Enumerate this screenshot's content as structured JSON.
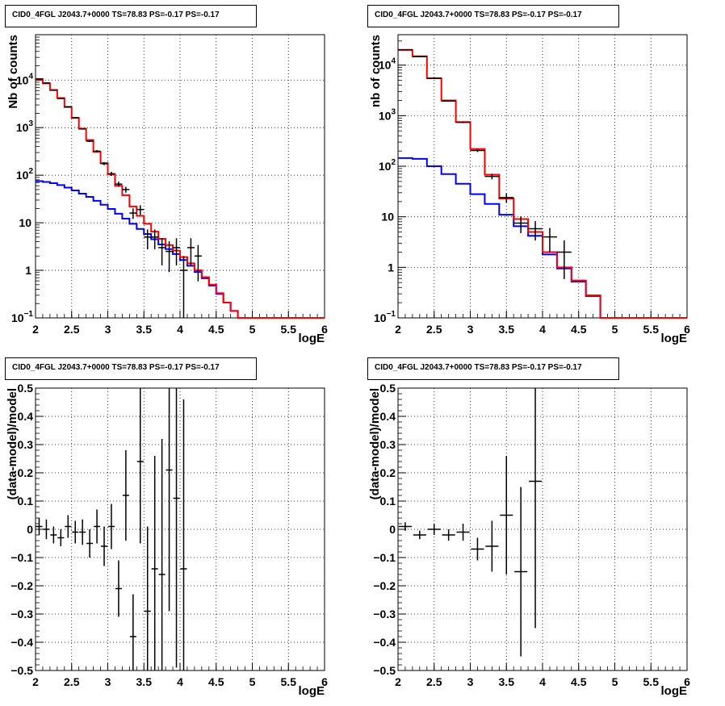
{
  "chart_data": [
    {
      "type": "line",
      "title": "CID0_4FGL J2043.7+0000 TS=78.83 PS=-0.17 PS=-0.17",
      "xlabel": "logE",
      "ylabel": "Nb of counts",
      "xlim": [
        2,
        6
      ],
      "ylim": [
        0.1,
        90000
      ],
      "yscale": "log",
      "grid": true,
      "x_ticks": [
        2,
        2.5,
        3,
        3.5,
        4,
        4.5,
        5,
        5.5,
        6
      ],
      "x_tick_labels": [
        "2",
        "2.5",
        "3",
        "3.5",
        "4",
        "4.5",
        "5",
        "5.5",
        "6"
      ],
      "y_tick_labels": [
        "10^-1",
        "1",
        "10",
        "10^2",
        "10^3",
        "10^4"
      ],
      "colors": {
        "total_model": "#ff0000",
        "background_model": "#0000ff",
        "data": "#000000"
      },
      "bin_edges": [
        2,
        2.1,
        2.2,
        2.3,
        2.4,
        2.5,
        2.6,
        2.7,
        2.8,
        2.9,
        3,
        3.1,
        3.2,
        3.3,
        3.4,
        3.5,
        3.6,
        3.7,
        3.8,
        3.9,
        4,
        4.1,
        4.2,
        4.3,
        4.4,
        4.5,
        4.6,
        4.7,
        4.8,
        4.9,
        5,
        5.1,
        5.2,
        5.3,
        5.4,
        5.5,
        5.6,
        5.7,
        5.8,
        5.9,
        6
      ],
      "series": [
        {
          "values": [
            10500,
            8500,
            6200,
            4200,
            2700,
            1600,
            950,
            550,
            310,
            180,
            105,
            60,
            38,
            22,
            14,
            9.5,
            6.5,
            4.6,
            3.4,
            2.6,
            1.9,
            1.4,
            1.0,
            0.72,
            0.5,
            0.33,
            0.21,
            0.14,
            0.1,
            0.1,
            0.1,
            0.1,
            0.1,
            0.1,
            0.1,
            0.1,
            0.1,
            0.1,
            0.1,
            0.1
          ]
        },
        {
          "values": [
            75,
            72,
            68,
            62,
            55,
            48,
            41,
            35,
            29,
            24,
            19.5,
            15.5,
            12.2,
            9.5,
            7.4,
            5.8,
            4.5,
            3.5,
            2.8,
            2.2,
            1.65,
            1.25,
            0.92,
            0.68,
            0.48,
            0.32,
            0.21,
            0.14,
            0.1,
            0.1,
            0.1,
            0.1,
            0.1,
            0.1,
            0.1,
            0.1,
            0.1,
            0.1,
            0.1,
            0.1
          ]
        },
        {
          "x": [
            2.05,
            2.15,
            2.25,
            2.35,
            2.45,
            2.55,
            2.65,
            2.75,
            2.85,
            2.95,
            3.05,
            3.15,
            3.25,
            3.35,
            3.45,
            3.55,
            3.65,
            3.75,
            3.85,
            3.95,
            4.05,
            4.15,
            4.25
          ],
          "y": [
            10600,
            8700,
            6100,
            4100,
            2750,
            1620,
            940,
            520,
            320,
            175,
            107,
            65,
            50,
            16,
            19,
            5,
            5,
            3,
            2.5,
            3,
            1,
            3,
            2
          ]
        }
      ]
    },
    {
      "type": "line",
      "title": "CID0_4FGL J2043.7+0000 TS=78.83 PS=-0.17 PS=-0.17",
      "xlabel": "logE",
      "ylabel": "nb of counts",
      "xlim": [
        2,
        6
      ],
      "ylim": [
        0.1,
        40000
      ],
      "yscale": "log",
      "grid": true,
      "x_ticks": [
        2,
        2.5,
        3,
        3.5,
        4,
        4.5,
        5,
        5.5,
        6
      ],
      "x_tick_labels": [
        "2",
        "2.5",
        "3",
        "3.5",
        "4",
        "4.5",
        "5",
        "5.5",
        "6"
      ],
      "y_tick_labels": [
        "10^-1",
        "1",
        "10",
        "10^2",
        "10^3",
        "10^4"
      ],
      "colors": {
        "total_model": "#ff0000",
        "background_model": "#0000ff",
        "data": "#000000"
      },
      "bin_edges": [
        2,
        2.2,
        2.4,
        2.6,
        2.8,
        3,
        3.2,
        3.4,
        3.6,
        3.8,
        4,
        4.2,
        4.4,
        4.6,
        4.8,
        5,
        5.2,
        5.4,
        5.6,
        5.8,
        6
      ],
      "series": [
        {
          "values": [
            20000,
            15000,
            5500,
            2000,
            750,
            220,
            68,
            23,
            9,
            5,
            2,
            1,
            0.55,
            0.28,
            0.1,
            0.1,
            0.1,
            0.1,
            0.1,
            0.1
          ]
        },
        {
          "values": [
            145,
            140,
            100,
            70,
            45,
            28,
            18,
            11,
            6.5,
            4.2,
            1.8,
            0.95,
            0.52,
            0.27,
            0.1,
            0.1,
            0.1,
            0.1,
            0.1,
            0.1
          ]
        },
        {
          "x": [
            2.1,
            2.3,
            2.5,
            2.7,
            2.9,
            3.1,
            3.3,
            3.5,
            3.7,
            3.9,
            4.1,
            4.3
          ],
          "y": [
            20200,
            14700,
            5500,
            1950,
            740,
            205,
            63,
            24,
            7.5,
            5.8,
            4,
            2
          ]
        }
      ]
    },
    {
      "type": "scatter",
      "title": "CID0_4FGL J2043.7+0000 TS=78.83 PS=-0.17 PS=-0.17",
      "xlabel": "logE",
      "ylabel": "(data-model)/model",
      "xlim": [
        2,
        6
      ],
      "ylim": [
        -0.5,
        0.5
      ],
      "grid": true,
      "x_ticks": [
        2,
        2.5,
        3,
        3.5,
        4,
        4.5,
        5,
        5.5,
        6
      ],
      "x_tick_labels": [
        "2",
        "2.5",
        "3",
        "3.5",
        "4",
        "4.5",
        "5",
        "5.5",
        "6"
      ],
      "y_ticks": [
        -0.5,
        -0.4,
        -0.3,
        -0.2,
        -0.1,
        0,
        0.1,
        0.2,
        0.3,
        0.4,
        0.5
      ],
      "y_tick_labels": [
        "−0.5",
        "−0.4",
        "−0.3",
        "−0.2",
        "−0.1",
        "0",
        "0.1",
        "0.2",
        "0.3",
        "0.4",
        "0.5"
      ],
      "colors": {
        "data": "#000000"
      },
      "x": [
        2.05,
        2.15,
        2.25,
        2.35,
        2.45,
        2.55,
        2.65,
        2.75,
        2.85,
        2.95,
        3.05,
        3.15,
        3.25,
        3.35,
        3.45,
        3.55,
        3.65,
        3.75,
        3.85,
        3.95,
        4.05
      ],
      "y": [
        0.01,
        0.0,
        -0.02,
        -0.03,
        0.01,
        -0.01,
        -0.01,
        -0.05,
        0.01,
        -0.06,
        0.01,
        -0.21,
        0.12,
        -0.38,
        0.24,
        -0.29,
        -0.14,
        -0.16,
        0.21,
        0.11,
        -0.14
      ],
      "yerr": [
        0.03,
        0.035,
        0.03,
        0.03,
        0.04,
        0.04,
        0.045,
        0.05,
        0.06,
        0.07,
        0.08,
        0.1,
        0.16,
        0.15,
        0.29,
        0.3,
        0.4,
        0.48,
        0.5,
        0.6,
        0.6
      ]
    },
    {
      "type": "scatter",
      "title": "CID0_4FGL J2043.7+0000 TS=78.83 PS=-0.17 PS=-0.17",
      "xlabel": "logE",
      "ylabel": "(data-model)/model",
      "xlim": [
        2,
        6
      ],
      "ylim": [
        -0.5,
        0.5
      ],
      "grid": true,
      "x_ticks": [
        2,
        2.5,
        3,
        3.5,
        4,
        4.5,
        5,
        5.5,
        6
      ],
      "x_tick_labels": [
        "2",
        "2.5",
        "3",
        "3.5",
        "4",
        "4.5",
        "5",
        "5.5",
        "6"
      ],
      "y_ticks": [
        -0.5,
        -0.4,
        -0.3,
        -0.2,
        -0.1,
        0,
        0.1,
        0.2,
        0.3,
        0.4,
        0.5
      ],
      "y_tick_labels": [
        "−0.5",
        "−0.4",
        "−0.3",
        "−0.2",
        "−0.1",
        "0",
        "0.1",
        "0.2",
        "0.3",
        "0.4",
        "0.5"
      ],
      "colors": {
        "data": "#000000"
      },
      "x": [
        2.1,
        2.3,
        2.5,
        2.7,
        2.9,
        3.1,
        3.3,
        3.5,
        3.7,
        3.9
      ],
      "y": [
        0.01,
        -0.02,
        0.0,
        -0.02,
        -0.01,
        -0.07,
        -0.06,
        0.05,
        -0.15,
        0.17
      ],
      "yerr": [
        0.015,
        0.015,
        0.02,
        0.02,
        0.03,
        0.04,
        0.09,
        0.21,
        0.3,
        0.52
      ]
    }
  ]
}
